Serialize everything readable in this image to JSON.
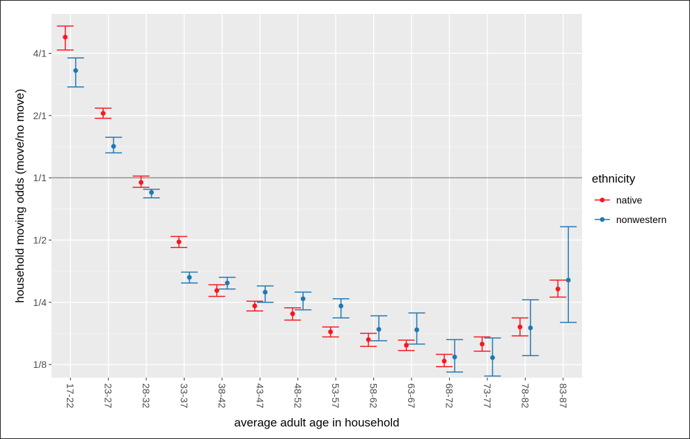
{
  "chart_data": {
    "type": "scatter",
    "xlabel": "average adult age in household",
    "ylabel": "household moving odds (move/no move)",
    "categories": [
      "17-22",
      "23-27",
      "28-32",
      "33-37",
      "38-42",
      "43-47",
      "48-52",
      "53-57",
      "58-62",
      "63-67",
      "68-72",
      "73-77",
      "78-82",
      "83-87"
    ],
    "y_scale": "log2",
    "ylim": [
      0.108,
      6.2
    ],
    "yticks": [
      {
        "value": 0.125,
        "label": "1/8"
      },
      {
        "value": 0.25,
        "label": "1/4"
      },
      {
        "value": 0.5,
        "label": "1/2"
      },
      {
        "value": 1,
        "label": "1/1"
      },
      {
        "value": 2,
        "label": "2/1"
      },
      {
        "value": 4,
        "label": "4/1"
      }
    ],
    "reference_line": 1,
    "grid": true,
    "legend": {
      "title": "ethnicity",
      "position": "right",
      "entries": [
        {
          "name": "native",
          "color": "#f8161e"
        },
        {
          "name": "nonwestern",
          "color": "#1f78b4"
        }
      ]
    },
    "series": [
      {
        "name": "native",
        "color": "#f8161e",
        "values": [
          4.79,
          2.05,
          0.95,
          0.49,
          0.285,
          0.24,
          0.22,
          0.18,
          0.165,
          0.155,
          0.13,
          0.157,
          0.19,
          0.29
        ],
        "lower": [
          4.15,
          1.94,
          0.9,
          0.46,
          0.267,
          0.227,
          0.205,
          0.17,
          0.153,
          0.146,
          0.122,
          0.145,
          0.172,
          0.265
        ],
        "upper": [
          5.42,
          2.17,
          1.02,
          0.52,
          0.304,
          0.253,
          0.235,
          0.19,
          0.177,
          0.164,
          0.14,
          0.17,
          0.21,
          0.32
        ]
      },
      {
        "name": "nonwestern",
        "color": "#1f78b4",
        "values": [
          3.3,
          1.42,
          0.85,
          0.33,
          0.31,
          0.28,
          0.26,
          0.24,
          0.185,
          0.184,
          0.136,
          0.135,
          0.188,
          0.32
        ],
        "lower": [
          2.75,
          1.32,
          0.8,
          0.31,
          0.29,
          0.25,
          0.23,
          0.21,
          0.163,
          0.157,
          0.115,
          0.11,
          0.138,
          0.2
        ],
        "upper": [
          3.8,
          1.57,
          0.88,
          0.35,
          0.33,
          0.3,
          0.28,
          0.26,
          0.215,
          0.222,
          0.165,
          0.168,
          0.257,
          0.58
        ]
      }
    ]
  }
}
